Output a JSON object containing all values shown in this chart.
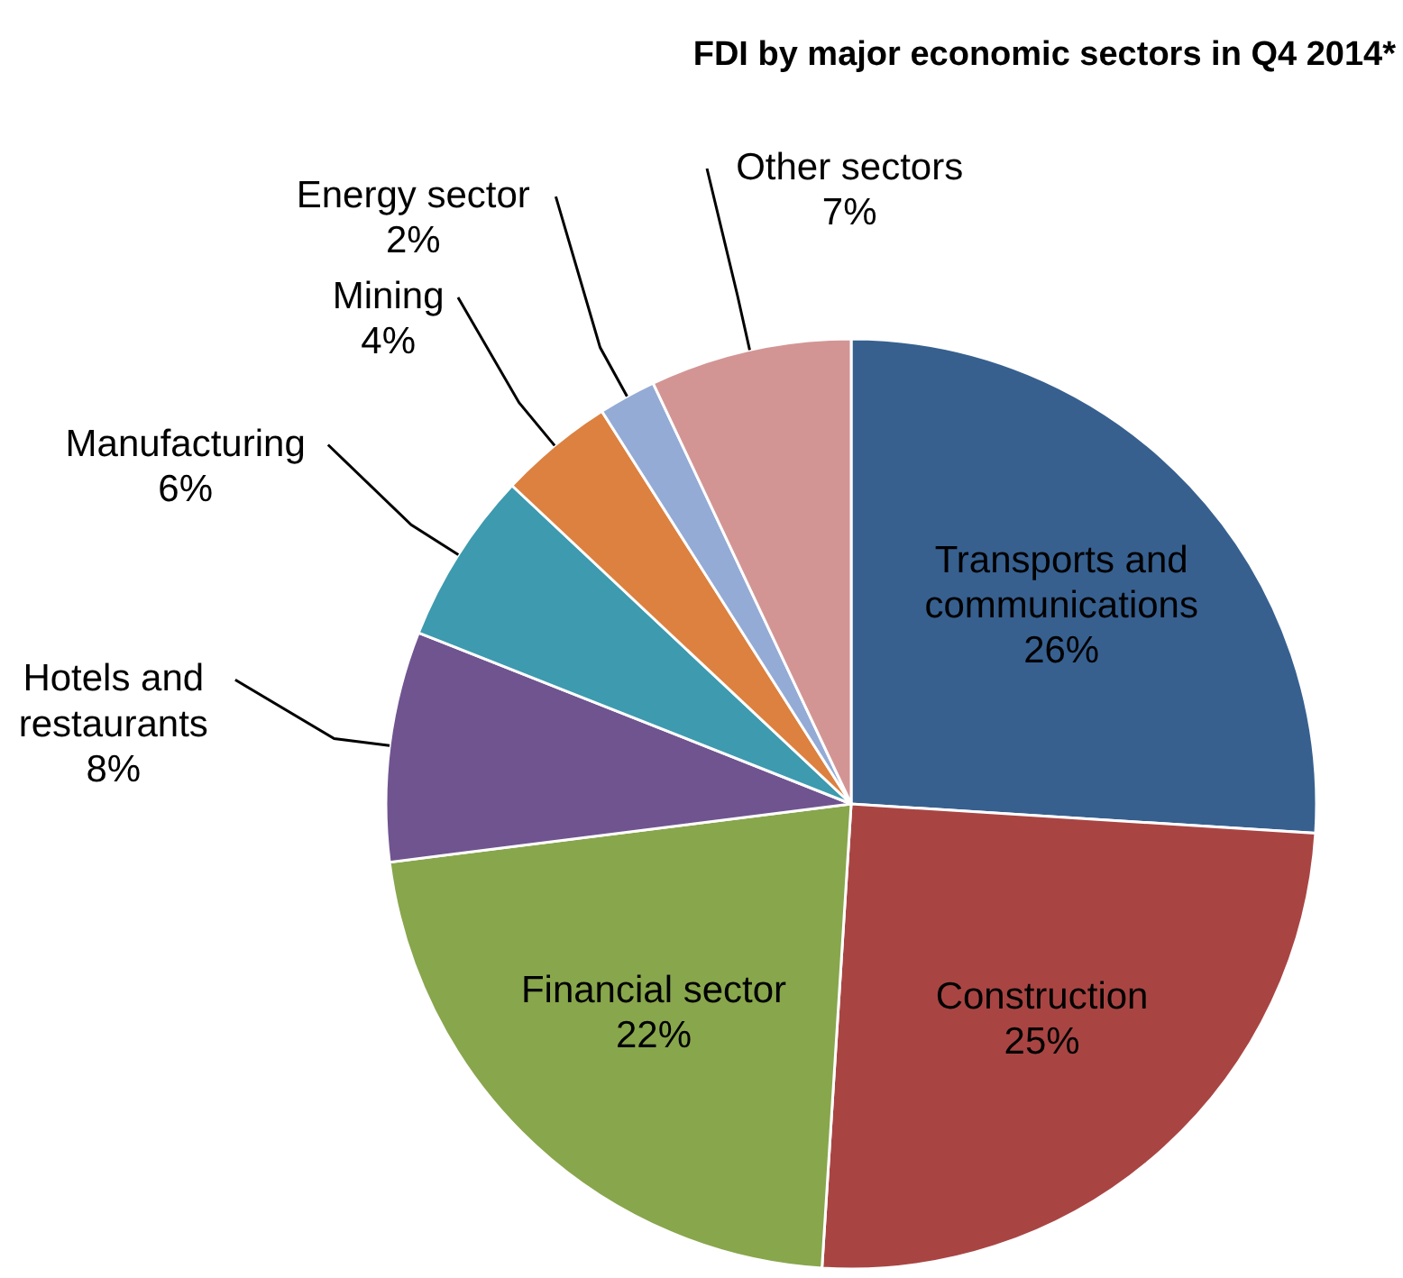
{
  "chart_data": {
    "type": "pie",
    "title": "FDI by major economic sectors in Q4 2014*",
    "categories": [
      "Transports and communications",
      "Construction",
      "Financial sector",
      "Hotels and restaurants",
      "Manufacturing",
      "Mining",
      "Energy sector",
      "Other sectors"
    ],
    "values": [
      26,
      25,
      22,
      8,
      6,
      4,
      2,
      7
    ],
    "colors": [
      "#37608f",
      "#a84543",
      "#88a64c",
      "#705490",
      "#3d9aaf",
      "#dc8140",
      "#94abd6",
      "#d39594"
    ],
    "value_labels": [
      "26%",
      "25%",
      "22%",
      "8%",
      "6%",
      "4%",
      "2%",
      "7%"
    ]
  }
}
